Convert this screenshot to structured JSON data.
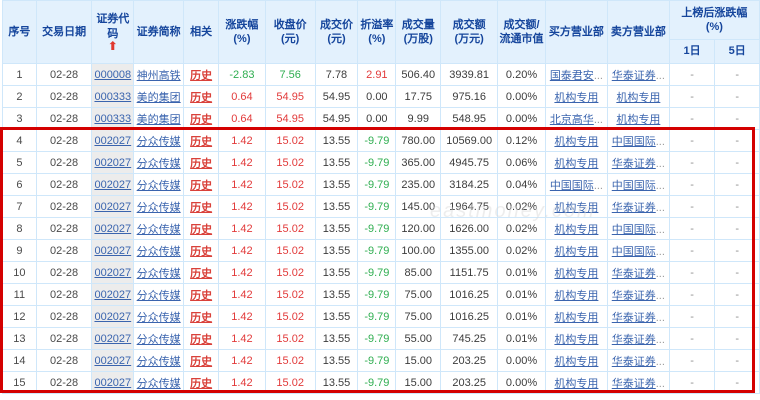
{
  "watermark": "eastmoney.com",
  "colors": {
    "up": "#e23a3a",
    "down": "#2fae50",
    "link": "#3a64ae",
    "related_link": "#d9413a",
    "header_text": "#15459c",
    "header_bg": "#e3f1fd",
    "highlight_border": "#d40000",
    "code_column_bg": "#ececec"
  },
  "table": {
    "headers": {
      "no": "序号",
      "date": "交易日期",
      "code": "证券代码",
      "name": "证券简称",
      "related": "相关",
      "change": "涨跌幅\n(%)",
      "close": "收盘价\n(元)",
      "price": "成交价\n(元)",
      "premium": "折溢率\n(%)",
      "volume": "成交量\n(万股)",
      "amount": "成交额\n(万元)",
      "ratio": "成交额/\n流通市值",
      "buyer": "买方营业部",
      "seller": "卖方营业部",
      "after_group": "上榜后涨跌幅\n(%)",
      "d1": "1日",
      "d5": "5日"
    },
    "sort_icon": "⬆",
    "col_keys": [
      "no",
      "date",
      "code",
      "name",
      "related",
      "change",
      "close",
      "price",
      "premium",
      "volume",
      "amount",
      "ratio",
      "buyer",
      "seller",
      "d1",
      "d5"
    ],
    "rows": [
      {
        "no": "1",
        "date": "02-28",
        "code": "000008",
        "name": "神州高铁",
        "related": "历史",
        "change": "-2.83",
        "close": "7.56",
        "price": "7.78",
        "premium": "2.91",
        "volume": "506.40",
        "amount": "3939.81",
        "ratio": "0.20%",
        "buyer": "国泰君安...",
        "seller": "华泰证券...",
        "d1": "-",
        "d5": "-",
        "colors": {
          "change": "down",
          "close": "down",
          "premium": "up"
        }
      },
      {
        "no": "2",
        "date": "02-28",
        "code": "000333",
        "name": "美的集团",
        "related": "历史",
        "change": "0.64",
        "close": "54.95",
        "price": "54.95",
        "premium": "0.00",
        "volume": "17.75",
        "amount": "975.16",
        "ratio": "0.00%",
        "buyer": "机构专用",
        "seller": "机构专用",
        "d1": "-",
        "d5": "-",
        "colors": {
          "change": "up",
          "close": "up"
        }
      },
      {
        "no": "3",
        "date": "02-28",
        "code": "000333",
        "name": "美的集团",
        "related": "历史",
        "change": "0.64",
        "close": "54.95",
        "price": "54.95",
        "premium": "0.00",
        "volume": "9.99",
        "amount": "548.95",
        "ratio": "0.00%",
        "buyer": "北京高华...",
        "seller": "机构专用",
        "d1": "-",
        "d5": "-",
        "colors": {
          "change": "up",
          "close": "up"
        }
      },
      {
        "no": "4",
        "date": "02-28",
        "code": "002027",
        "name": "分众传媒",
        "related": "历史",
        "change": "1.42",
        "close": "15.02",
        "price": "13.55",
        "premium": "-9.79",
        "volume": "780.00",
        "amount": "10569.00",
        "ratio": "0.12%",
        "buyer": "机构专用",
        "seller": "中国国际...",
        "d1": "-",
        "d5": "-",
        "colors": {
          "change": "up",
          "close": "up",
          "premium": "down"
        }
      },
      {
        "no": "5",
        "date": "02-28",
        "code": "002027",
        "name": "分众传媒",
        "related": "历史",
        "change": "1.42",
        "close": "15.02",
        "price": "13.55",
        "premium": "-9.79",
        "volume": "365.00",
        "amount": "4945.75",
        "ratio": "0.06%",
        "buyer": "机构专用",
        "seller": "华泰证券...",
        "d1": "-",
        "d5": "-",
        "colors": {
          "change": "up",
          "close": "up",
          "premium": "down"
        }
      },
      {
        "no": "6",
        "date": "02-28",
        "code": "002027",
        "name": "分众传媒",
        "related": "历史",
        "change": "1.42",
        "close": "15.02",
        "price": "13.55",
        "premium": "-9.79",
        "volume": "235.00",
        "amount": "3184.25",
        "ratio": "0.04%",
        "buyer": "中国国际...",
        "seller": "中国国际...",
        "d1": "-",
        "d5": "-",
        "colors": {
          "change": "up",
          "close": "up",
          "premium": "down"
        }
      },
      {
        "no": "7",
        "date": "02-28",
        "code": "002027",
        "name": "分众传媒",
        "related": "历史",
        "change": "1.42",
        "close": "15.02",
        "price": "13.55",
        "premium": "-9.79",
        "volume": "145.00",
        "amount": "1964.75",
        "ratio": "0.02%",
        "buyer": "机构专用",
        "seller": "华泰证券...",
        "d1": "-",
        "d5": "-",
        "colors": {
          "change": "up",
          "close": "up",
          "premium": "down"
        }
      },
      {
        "no": "8",
        "date": "02-28",
        "code": "002027",
        "name": "分众传媒",
        "related": "历史",
        "change": "1.42",
        "close": "15.02",
        "price": "13.55",
        "premium": "-9.79",
        "volume": "120.00",
        "amount": "1626.00",
        "ratio": "0.02%",
        "buyer": "机构专用",
        "seller": "中国国际...",
        "d1": "-",
        "d5": "-",
        "colors": {
          "change": "up",
          "close": "up",
          "premium": "down"
        }
      },
      {
        "no": "9",
        "date": "02-28",
        "code": "002027",
        "name": "分众传媒",
        "related": "历史",
        "change": "1.42",
        "close": "15.02",
        "price": "13.55",
        "premium": "-9.79",
        "volume": "100.00",
        "amount": "1355.00",
        "ratio": "0.02%",
        "buyer": "机构专用",
        "seller": "中国国际...",
        "d1": "-",
        "d5": "-",
        "colors": {
          "change": "up",
          "close": "up",
          "premium": "down"
        }
      },
      {
        "no": "10",
        "date": "02-28",
        "code": "002027",
        "name": "分众传媒",
        "related": "历史",
        "change": "1.42",
        "close": "15.02",
        "price": "13.55",
        "premium": "-9.79",
        "volume": "85.00",
        "amount": "1151.75",
        "ratio": "0.01%",
        "buyer": "机构专用",
        "seller": "华泰证券...",
        "d1": "-",
        "d5": "-",
        "colors": {
          "change": "up",
          "close": "up",
          "premium": "down"
        }
      },
      {
        "no": "11",
        "date": "02-28",
        "code": "002027",
        "name": "分众传媒",
        "related": "历史",
        "change": "1.42",
        "close": "15.02",
        "price": "13.55",
        "premium": "-9.79",
        "volume": "75.00",
        "amount": "1016.25",
        "ratio": "0.01%",
        "buyer": "机构专用",
        "seller": "华泰证券...",
        "d1": "-",
        "d5": "-",
        "colors": {
          "change": "up",
          "close": "up",
          "premium": "down"
        }
      },
      {
        "no": "12",
        "date": "02-28",
        "code": "002027",
        "name": "分众传媒",
        "related": "历史",
        "change": "1.42",
        "close": "15.02",
        "price": "13.55",
        "premium": "-9.79",
        "volume": "75.00",
        "amount": "1016.25",
        "ratio": "0.01%",
        "buyer": "机构专用",
        "seller": "华泰证券...",
        "d1": "-",
        "d5": "-",
        "colors": {
          "change": "up",
          "close": "up",
          "premium": "down"
        }
      },
      {
        "no": "13",
        "date": "02-28",
        "code": "002027",
        "name": "分众传媒",
        "related": "历史",
        "change": "1.42",
        "close": "15.02",
        "price": "13.55",
        "premium": "-9.79",
        "volume": "55.00",
        "amount": "745.25",
        "ratio": "0.01%",
        "buyer": "机构专用",
        "seller": "华泰证券...",
        "d1": "-",
        "d5": "-",
        "colors": {
          "change": "up",
          "close": "up",
          "premium": "down"
        }
      },
      {
        "no": "14",
        "date": "02-28",
        "code": "002027",
        "name": "分众传媒",
        "related": "历史",
        "change": "1.42",
        "close": "15.02",
        "price": "13.55",
        "premium": "-9.79",
        "volume": "15.00",
        "amount": "203.25",
        "ratio": "0.00%",
        "buyer": "机构专用",
        "seller": "华泰证券...",
        "d1": "-",
        "d5": "-",
        "colors": {
          "change": "up",
          "close": "up",
          "premium": "down"
        }
      },
      {
        "no": "15",
        "date": "02-28",
        "code": "002027",
        "name": "分众传媒",
        "related": "历史",
        "change": "1.42",
        "close": "15.02",
        "price": "13.55",
        "premium": "-9.79",
        "volume": "15.00",
        "amount": "203.25",
        "ratio": "0.00%",
        "buyer": "机构专用",
        "seller": "华泰证券...",
        "d1": "-",
        "d5": "-",
        "colors": {
          "change": "up",
          "close": "up",
          "premium": "down"
        }
      }
    ]
  }
}
